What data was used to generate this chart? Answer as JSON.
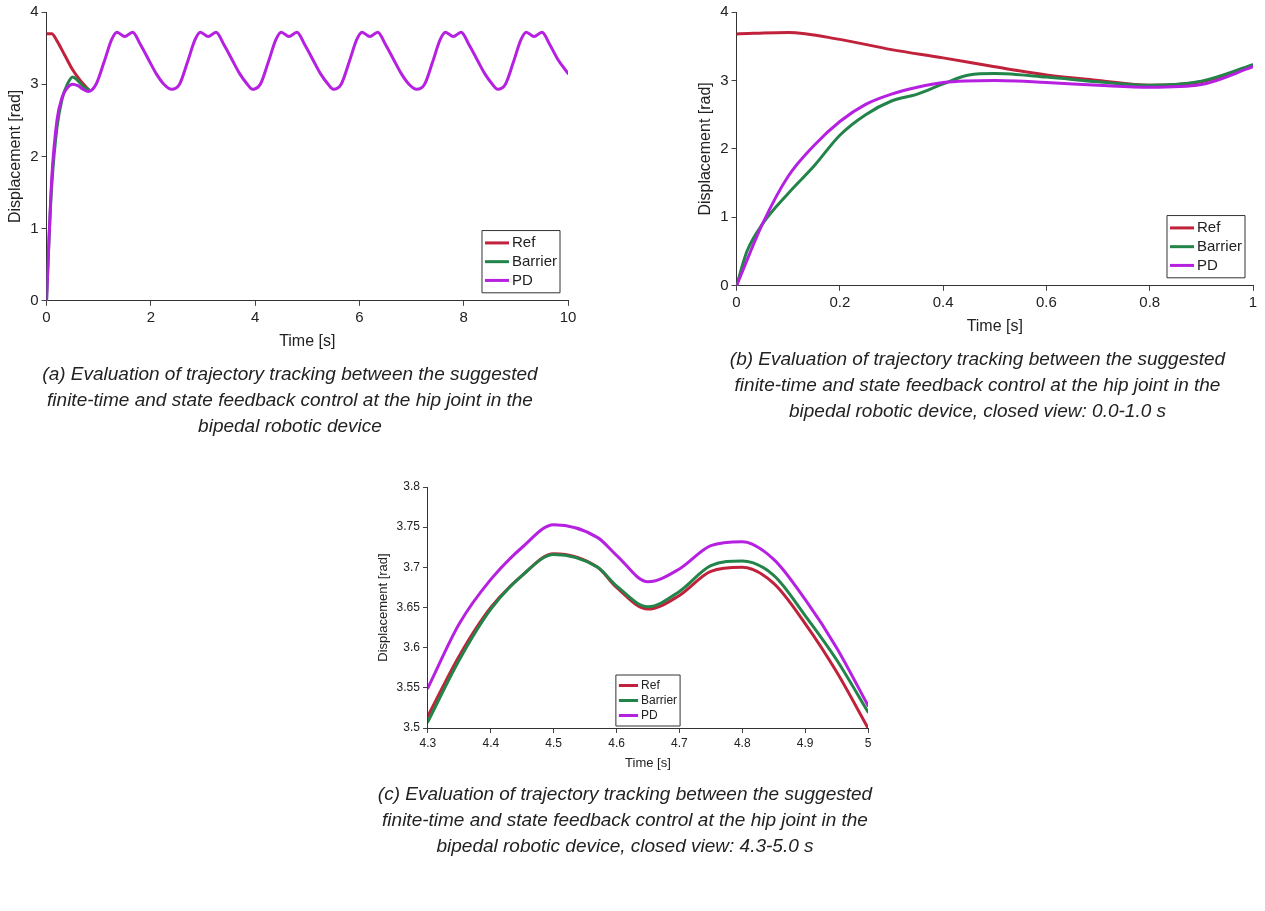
{
  "chart_data": [
    {
      "type": "line",
      "xlabel": "Time [s]",
      "ylabel": "Displacement [rad]",
      "xlim": [
        0,
        10
      ],
      "xticks": [
        0,
        2,
        4,
        6,
        8,
        10
      ],
      "ylim": [
        0,
        4
      ],
      "yticks": [
        0,
        1,
        2,
        3,
        4
      ],
      "grid": false,
      "legend": "bottom right",
      "annotations": [
        "(a) Evaluation of trajectory tracking between the suggested finite-time and state feedback control at the hip joint in the bipedal robotic device"
      ],
      "series": [
        {
          "name": "Ref",
          "color": "#c0223b",
          "x": [
            0,
            0.1,
            0.2,
            0.35,
            0.5,
            0.65,
            0.8
          ],
          "values": [
            3.7,
            3.7,
            3.6,
            3.4,
            3.2,
            3.05,
            2.93
          ]
        },
        {
          "name": "Barrier",
          "color": "#23844a",
          "x": [
            0,
            0.05,
            0.1,
            0.2,
            0.3,
            0.4,
            0.5,
            0.6,
            0.7,
            0.8
          ],
          "values": [
            0,
            0.9,
            1.6,
            2.4,
            2.8,
            3.0,
            3.1,
            3.05,
            2.97,
            2.93
          ]
        },
        {
          "name": "PD",
          "color": "#b620e0",
          "x": [
            0,
            0.05,
            0.1,
            0.2,
            0.3,
            0.4,
            0.5,
            0.6,
            0.7,
            0.8,
            0.95,
            1.1,
            1.25,
            1.35,
            1.5,
            1.65,
            1.8,
            1.95,
            2.1,
            2.25,
            2.4,
            2.55,
            2.7,
            2.85,
            2.95,
            3.1,
            3.25,
            3.4,
            3.55,
            3.7,
            3.85,
            3.95,
            4.1,
            4.25,
            4.4,
            4.5,
            4.65,
            4.8,
            4.95,
            5.1,
            5.25,
            5.4,
            5.5,
            5.65,
            5.8,
            5.95,
            6.05,
            6.2,
            6.35,
            6.5,
            6.65,
            6.8,
            6.95,
            7.1,
            7.25,
            7.4,
            7.55,
            7.65,
            7.8,
            7.95,
            8.1,
            8.25,
            8.4,
            8.55,
            8.65,
            8.8,
            8.95,
            9.1,
            9.2,
            9.35,
            9.5,
            9.65,
            9.8,
            10
          ],
          "values": [
            0,
            0.9,
            1.7,
            2.5,
            2.82,
            2.95,
            3.0,
            2.98,
            2.93,
            2.9,
            3.0,
            3.3,
            3.62,
            3.72,
            3.66,
            3.72,
            3.55,
            3.35,
            3.15,
            3.0,
            2.93,
            3.0,
            3.3,
            3.62,
            3.72,
            3.66,
            3.72,
            3.55,
            3.35,
            3.15,
            3.0,
            2.93,
            3.0,
            3.3,
            3.62,
            3.72,
            3.66,
            3.72,
            3.55,
            3.35,
            3.15,
            3.0,
            2.93,
            3.0,
            3.3,
            3.62,
            3.72,
            3.66,
            3.72,
            3.55,
            3.35,
            3.15,
            3.0,
            2.93,
            3.0,
            3.3,
            3.62,
            3.72,
            3.66,
            3.72,
            3.55,
            3.35,
            3.15,
            3.0,
            2.93,
            3.0,
            3.3,
            3.62,
            3.72,
            3.66,
            3.72,
            3.55,
            3.35,
            3.15
          ]
        }
      ]
    },
    {
      "type": "line",
      "xlabel": "Time [s]",
      "ylabel": "Displacement [rad]",
      "xlim": [
        0,
        1
      ],
      "xticks": [
        0,
        0.2,
        0.4,
        0.6,
        0.8,
        1
      ],
      "ylim": [
        0,
        4
      ],
      "yticks": [
        0,
        1,
        2,
        3,
        4
      ],
      "grid": false,
      "legend": "bottom right",
      "annotations": [
        "(b) Evaluation of trajectory tracking between the suggested finite-time and state feedback control at the hip joint in the bipedal robotic device, closed view: 0.0-1.0 s"
      ],
      "series": [
        {
          "name": "Ref",
          "color": "#c0223b",
          "x": [
            0,
            0.1,
            0.2,
            0.3,
            0.4,
            0.5,
            0.6,
            0.7,
            0.8,
            0.9,
            1
          ],
          "values": [
            3.68,
            3.7,
            3.6,
            3.45,
            3.33,
            3.2,
            3.08,
            3.0,
            2.93,
            2.98,
            3.22
          ]
        },
        {
          "name": "Barrier",
          "color": "#23844a",
          "x": [
            0,
            0.02,
            0.05,
            0.1,
            0.15,
            0.2,
            0.25,
            0.3,
            0.35,
            0.4,
            0.45,
            0.5,
            0.6,
            0.7,
            0.8,
            0.9,
            1
          ],
          "values": [
            0,
            0.5,
            0.9,
            1.35,
            1.75,
            2.2,
            2.5,
            2.7,
            2.8,
            2.95,
            3.08,
            3.1,
            3.05,
            2.98,
            2.93,
            2.99,
            3.23
          ]
        },
        {
          "name": "PD",
          "color": "#b620e0",
          "x": [
            0,
            0.05,
            0.1,
            0.15,
            0.2,
            0.25,
            0.3,
            0.35,
            0.4,
            0.5,
            0.6,
            0.7,
            0.8,
            0.9,
            1
          ],
          "values": [
            0,
            0.9,
            1.6,
            2.05,
            2.4,
            2.65,
            2.8,
            2.9,
            2.97,
            3.0,
            2.97,
            2.93,
            2.9,
            2.94,
            3.2
          ]
        }
      ]
    },
    {
      "type": "line",
      "xlabel": "Time [s]",
      "ylabel": "Displacement [rad]",
      "xlim": [
        4.3,
        5
      ],
      "xticks": [
        4.3,
        4.4,
        4.5,
        4.6,
        4.7,
        4.8,
        4.9,
        5
      ],
      "ylim": [
        3.5,
        3.8
      ],
      "yticks": [
        3.5,
        3.55,
        3.6,
        3.65,
        3.7,
        3.75,
        3.8
      ],
      "grid": false,
      "legend": "bottom",
      "annotations": [
        "(c) Evaluation of trajectory tracking between the suggested finite-time and state feedback control at the hip joint in the bipedal robotic device, closed view: 4.3-5.0 s"
      ],
      "series": [
        {
          "name": "Ref",
          "color": "#c0223b",
          "x": [
            4.3,
            4.35,
            4.4,
            4.45,
            4.5,
            4.57,
            4.6,
            4.65,
            4.7,
            4.75,
            4.8,
            4.85,
            4.9,
            4.95,
            5
          ],
          "values": [
            3.515,
            3.59,
            3.65,
            3.69,
            3.717,
            3.7,
            3.675,
            3.648,
            3.665,
            3.695,
            3.7,
            3.68,
            3.63,
            3.57,
            3.5
          ]
        },
        {
          "name": "Barrier",
          "color": "#23844a",
          "x": [
            4.3,
            4.35,
            4.4,
            4.45,
            4.5,
            4.57,
            4.6,
            4.65,
            4.7,
            4.75,
            4.8,
            4.85,
            4.9,
            4.95,
            5
          ],
          "values": [
            3.508,
            3.585,
            3.648,
            3.69,
            3.716,
            3.7,
            3.677,
            3.651,
            3.67,
            3.702,
            3.708,
            3.69,
            3.64,
            3.585,
            3.52
          ]
        },
        {
          "name": "PD",
          "color": "#b620e0",
          "x": [
            4.3,
            4.35,
            4.4,
            4.45,
            4.5,
            4.57,
            4.6,
            4.65,
            4.7,
            4.75,
            4.8,
            4.85,
            4.9,
            4.95,
            5
          ],
          "values": [
            3.55,
            3.63,
            3.685,
            3.725,
            3.753,
            3.737,
            3.715,
            3.682,
            3.698,
            3.727,
            3.732,
            3.71,
            3.66,
            3.6,
            3.528
          ]
        }
      ]
    }
  ]
}
